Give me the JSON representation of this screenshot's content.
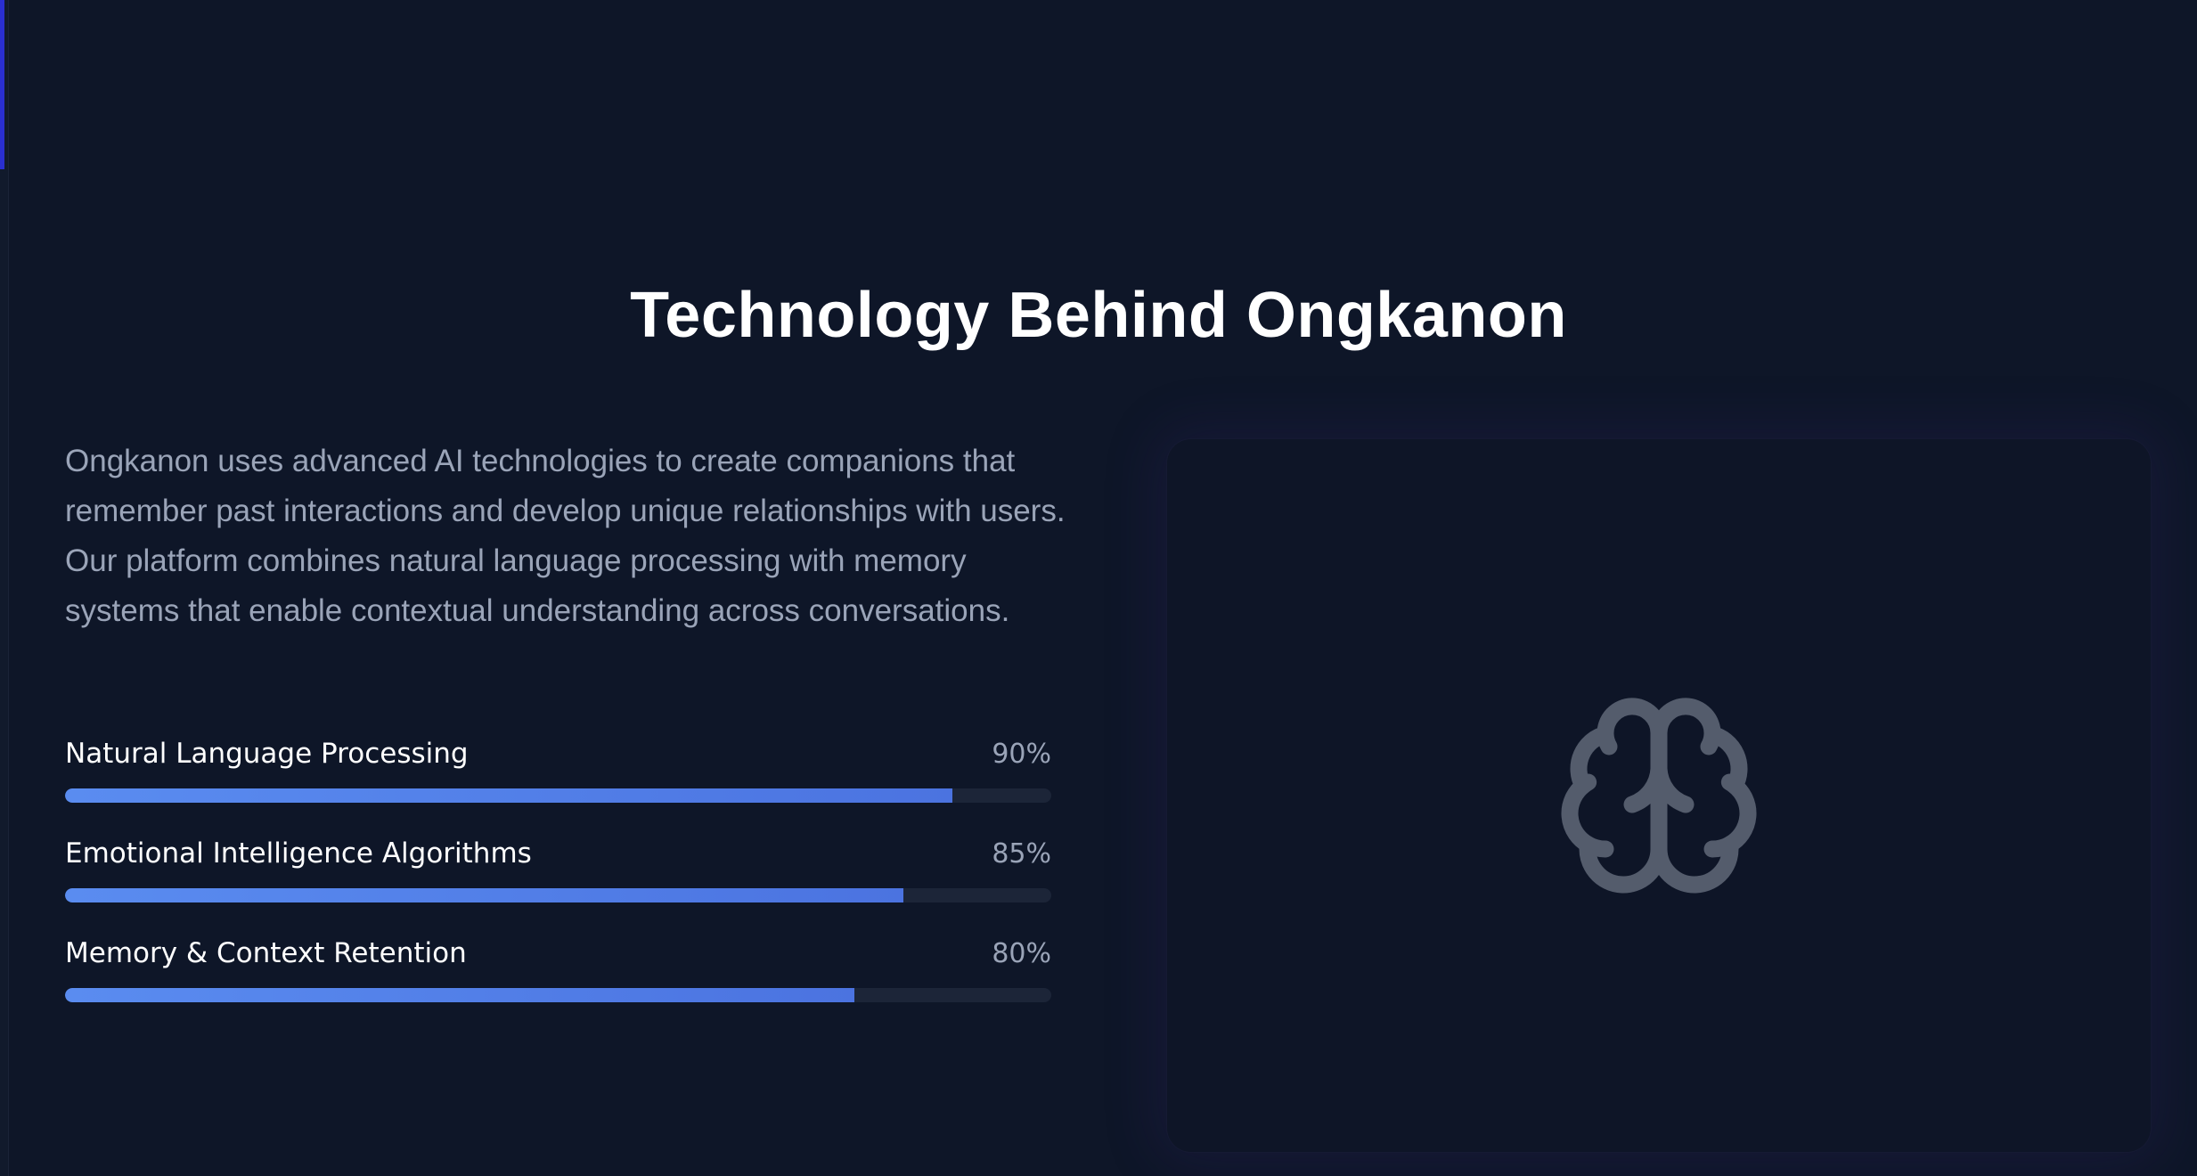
{
  "section": {
    "title": "Technology Behind Ongkanon",
    "description": "Ongkanon uses advanced AI technologies to create companions that remember past interactions and develop unique relationships with users. Our platform combines natural language processing with memory systems that enable contextual understanding across conversations."
  },
  "skills": [
    {
      "name": "Natural Language Processing",
      "percent_label": "90%",
      "value": 90
    },
    {
      "name": "Emotional Intelligence Algorithms",
      "percent_label": "85%",
      "value": 85
    },
    {
      "name": "Memory & Context Retention",
      "percent_label": "80%",
      "value": 80
    }
  ],
  "visual": {
    "icon": "brain-icon"
  },
  "colors": {
    "background": "#0e1628",
    "bar_fill": "#5a8cf0",
    "bar_track": "#1c2538",
    "icon": "#545c6c"
  }
}
